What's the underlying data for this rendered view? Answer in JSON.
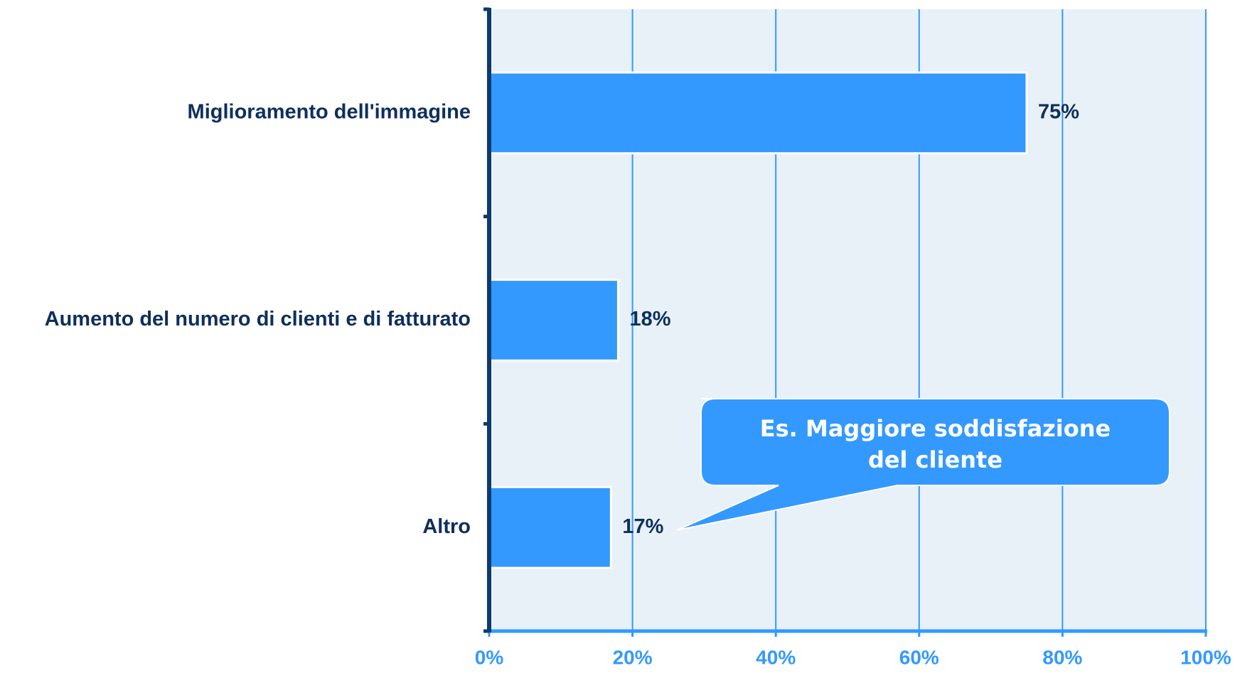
{
  "chart_data": {
    "type": "barh",
    "categories": [
      "Miglioramento dell'immagine",
      "Aumento del numero di clienti e di fatturato",
      "Altro"
    ],
    "values": [
      75,
      18,
      17
    ],
    "value_labels": [
      "75%",
      "18%",
      "17%"
    ],
    "color": "#3399ff",
    "xlim": [
      0,
      100
    ],
    "xticks": [
      {
        "value": 0,
        "label": "0%"
      },
      {
        "value": 20,
        "label": "20%"
      },
      {
        "value": 40,
        "label": "40%"
      },
      {
        "value": 60,
        "label": "60%"
      },
      {
        "value": 80,
        "label": "80%"
      },
      {
        "value": 100,
        "label": "100%"
      }
    ],
    "grid": true,
    "annotation": "Es. Maggiore soddisfazione del cliente"
  }
}
